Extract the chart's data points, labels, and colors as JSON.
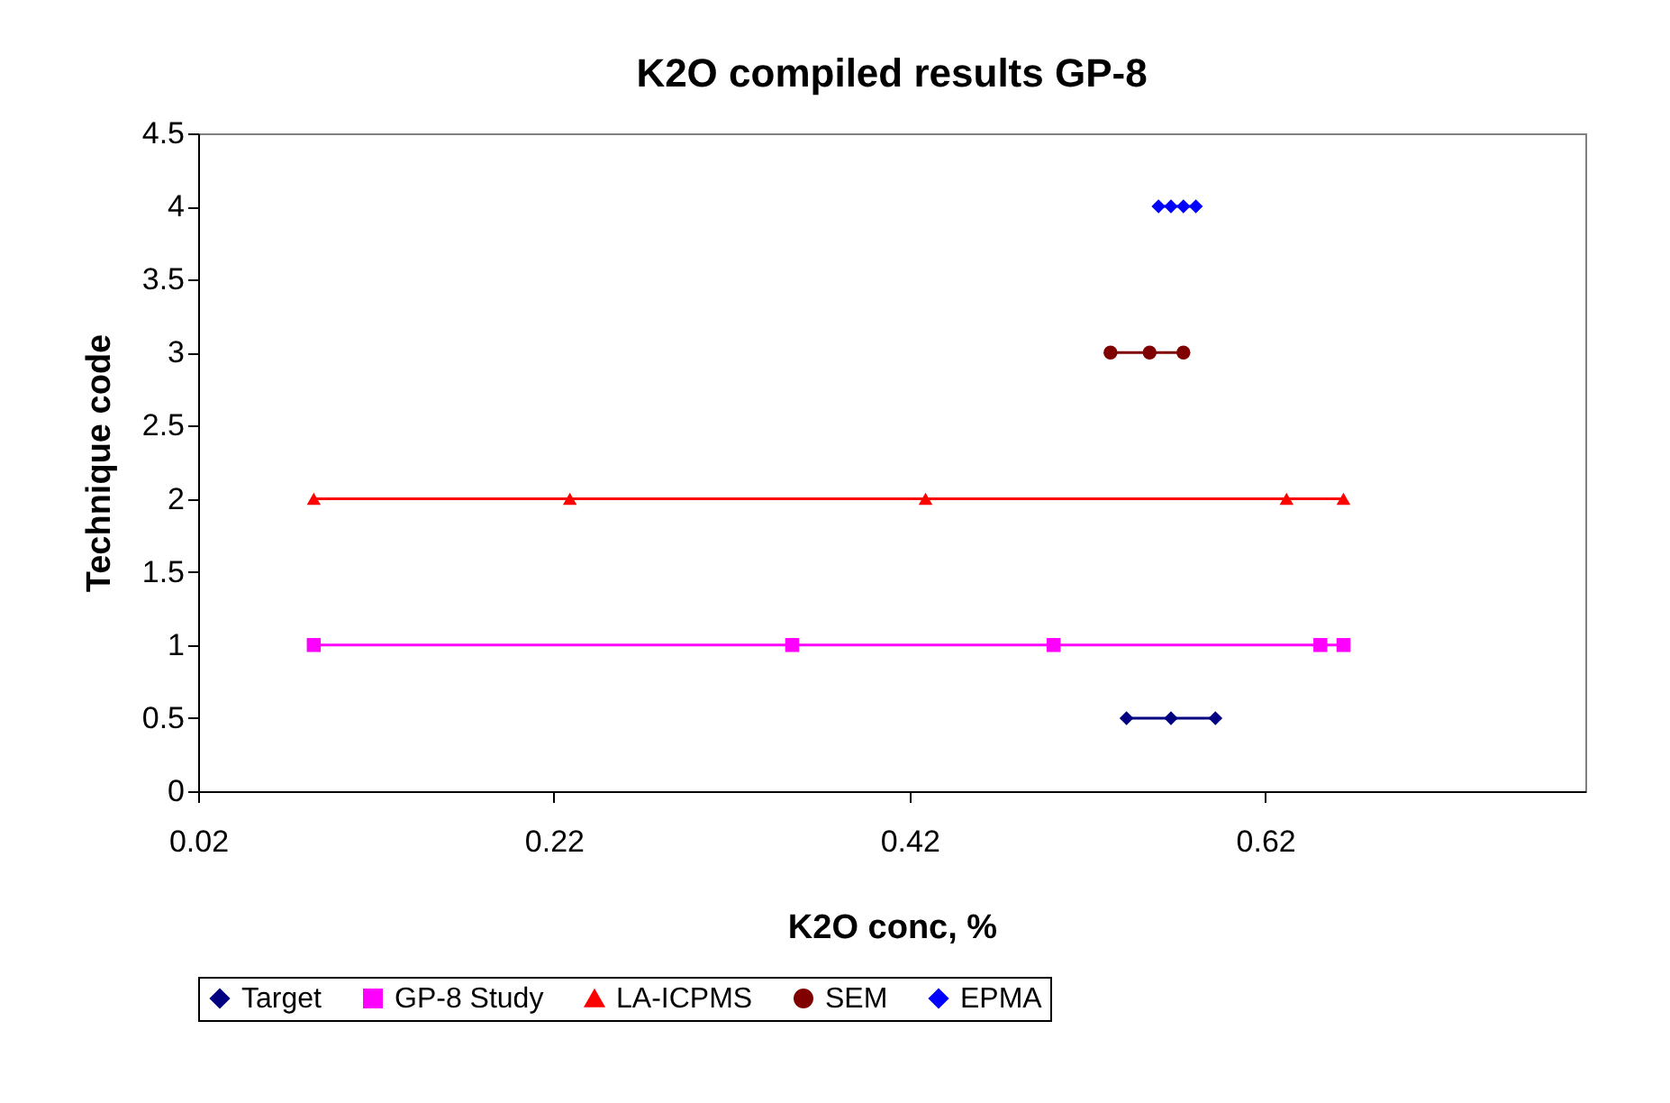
{
  "chart_data": {
    "type": "line",
    "title": "K2O compiled results GP-8",
    "xlabel": "K2O conc, %",
    "ylabel": "Technique code",
    "xlim": [
      0.02,
      0.8
    ],
    "xticks": [
      0.02,
      0.22,
      0.42,
      0.62
    ],
    "ylim": [
      0,
      4.5
    ],
    "yticks": [
      0,
      0.5,
      1,
      1.5,
      2,
      2.5,
      3,
      3.5,
      4,
      4.5
    ],
    "grid": false,
    "legend": "bottom",
    "series": [
      {
        "name": "Target",
        "color": "#000080",
        "marker": "diamond",
        "x": [
          0.542,
          0.567,
          0.592
        ],
        "values": [
          0.5,
          0.5,
          0.5
        ]
      },
      {
        "name": "GP-8 Study",
        "color": "#ff00ff",
        "marker": "square",
        "x": [
          0.085,
          0.354,
          0.501,
          0.651,
          0.664
        ],
        "values": [
          1,
          1,
          1,
          1,
          1
        ]
      },
      {
        "name": "LA-ICPMS",
        "color": "#ff0000",
        "marker": "triangle",
        "x": [
          0.085,
          0.229,
          0.429,
          0.632,
          0.664
        ],
        "values": [
          2,
          2,
          2,
          2,
          2
        ]
      },
      {
        "name": "SEM",
        "color": "#800000",
        "marker": "circle",
        "x": [
          0.533,
          0.555,
          0.574
        ],
        "values": [
          3,
          3,
          3
        ]
      },
      {
        "name": "EPMA",
        "color": "#0000ff",
        "marker": "diamond",
        "x": [
          0.56,
          0.567,
          0.574,
          0.581
        ],
        "values": [
          4,
          4,
          4,
          4
        ]
      }
    ]
  }
}
